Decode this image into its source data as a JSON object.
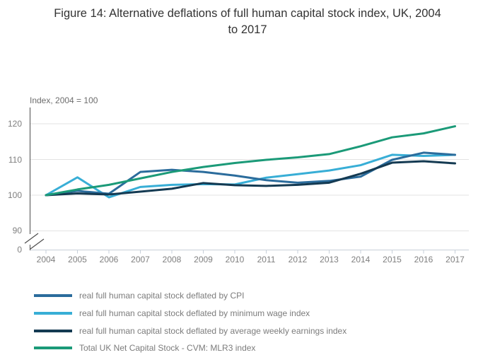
{
  "title": {
    "full": "Figure 14: Alternative deflations of full human capital stock index, UK, 2004 to 2017",
    "line1": "Figure 14: Alternative deflations of full human capital stock index, UK, 2004",
    "line2": "to 2017"
  },
  "chart_data": {
    "type": "line",
    "title": "Figure 14: Alternative deflations of full human capital stock index, UK, 2004 to 2017",
    "ylabel": "Index, 2004 = 100",
    "xlabel": "",
    "x": [
      2004,
      2005,
      2006,
      2007,
      2008,
      2009,
      2010,
      2011,
      2012,
      2013,
      2014,
      2015,
      2016,
      2017
    ],
    "series": [
      {
        "name": "real full human capital stock deflated by CPI",
        "color": "#2b6c9c",
        "values": [
          100,
          101.2,
          100.4,
          106.5,
          107.1,
          106.5,
          105.5,
          104.2,
          103.5,
          104.0,
          105.2,
          109.9,
          111.9,
          111.3
        ]
      },
      {
        "name": "real full human capital stock deflated by minimum wage index",
        "color": "#38aed6",
        "values": [
          100,
          105.0,
          99.4,
          102.3,
          102.9,
          103.1,
          103.0,
          104.9,
          105.9,
          106.9,
          108.4,
          111.3,
          111.0,
          111.3
        ]
      },
      {
        "name": "real full human capital stock deflated by average weekly earnings index",
        "color": "#143a52",
        "values": [
          100,
          100.5,
          100.2,
          101.0,
          101.8,
          103.4,
          102.8,
          102.6,
          102.9,
          103.5,
          106.0,
          109.1,
          109.5,
          108.9
        ]
      },
      {
        "name": "Total UK Net Capital Stock - CVM: MLR3 index",
        "color": "#1b9a78",
        "values": [
          100,
          101.6,
          102.9,
          104.7,
          106.5,
          107.9,
          109.0,
          109.9,
          110.6,
          111.5,
          113.7,
          116.2,
          117.3,
          119.3
        ]
      }
    ],
    "ytick_labels": [
      "120",
      "110",
      "100",
      "90",
      "0"
    ],
    "grid_values": [
      90,
      100,
      110,
      120
    ],
    "ylim_shown": [
      90,
      120
    ],
    "axis_break": true,
    "grid": true,
    "legend_position": "bottom"
  },
  "colors": {
    "gridline": "#e3e3e3",
    "x_axis": "#c7cfd9",
    "y_axis": "#4d4d4d",
    "tick_text": "#7f7f7f"
  }
}
